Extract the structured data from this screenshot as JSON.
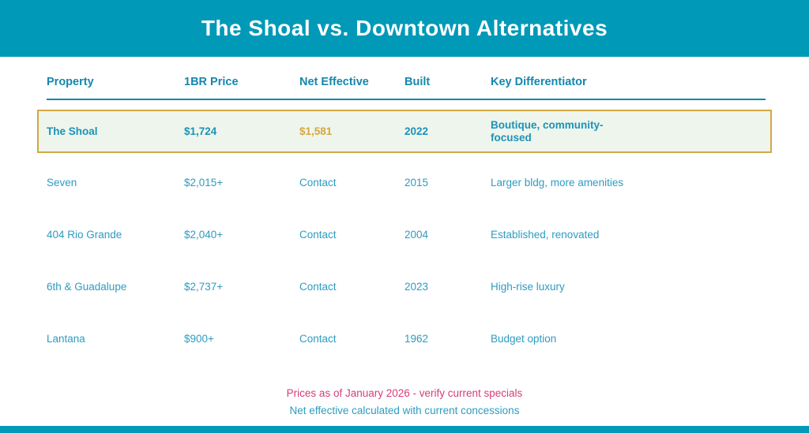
{
  "title": "The Shoal vs. Downtown Alternatives",
  "chart_data": {
    "type": "table",
    "title": "The Shoal vs. Downtown Alternatives",
    "columns": [
      "Property",
      "1BR Price",
      "Net Effective",
      "Built",
      "Key Differentiator"
    ],
    "highlight_row": {
      "property": "The Shoal",
      "price": "$1,724",
      "net_effective": "$1,581",
      "built": "2022",
      "differentiator": "Boutique, community-focused"
    },
    "rows": [
      {
        "property": "Seven",
        "price": "$2,015+",
        "net_effective": "Contact",
        "built": "2015",
        "differentiator": "Larger bldg, more amenities"
      },
      {
        "property": "404 Rio Grande",
        "price": "$2,040+",
        "net_effective": "Contact",
        "built": "2004",
        "differentiator": "Established, renovated"
      },
      {
        "property": "6th & Guadalupe",
        "price": "$2,737+",
        "net_effective": "Contact",
        "built": "2023",
        "differentiator": "High-rise luxury"
      },
      {
        "property": "Lantana",
        "price": "$900+",
        "net_effective": "Contact",
        "built": "1962",
        "differentiator": "Budget option"
      }
    ],
    "annotations": [
      "Prices as of January 2026 - verify current specials",
      "Net effective calculated with current concessions"
    ],
    "layout_hints": {
      "highlighted_row_index": 0,
      "grid": "off",
      "header_rule": "on"
    }
  },
  "footnotes": {
    "primary": "Prices as of January 2026 - verify current specials",
    "secondary": "Net effective calculated with current concessions"
  },
  "colors": {
    "banner_teal": "#0099b8",
    "header_text": "#1487ae",
    "row_text": "#2d9cc1",
    "highlight_text": "#1b93b8",
    "highlight_bg": "#eef5ec",
    "highlight_border": "#d4a843",
    "gold_text": "#d4a843",
    "note_pink": "#d63c78"
  }
}
